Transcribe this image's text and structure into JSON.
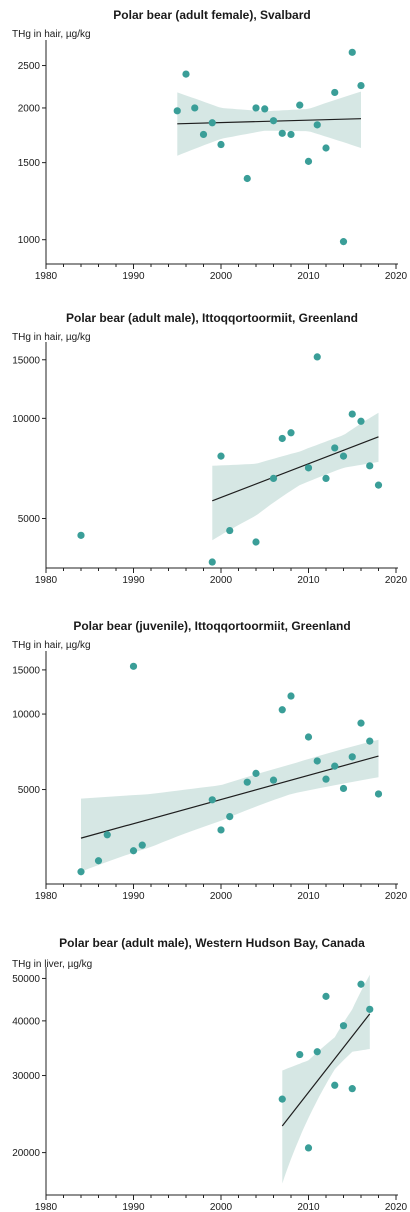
{
  "chart_data": [
    {
      "type": "scatter",
      "title": "Polar bear (adult female), Svalbard",
      "ylabel": "THg in hair, µg/kg",
      "xlabel": "",
      "y_scale": "log",
      "xlim": [
        1980,
        2020
      ],
      "ylim": [
        880,
        2800
      ],
      "x_ticks": [
        1980,
        1990,
        2000,
        2010,
        2020
      ],
      "y_ticks": [
        1000,
        1500,
        2000,
        2500
      ],
      "points": [
        [
          1995,
          1970
        ],
        [
          1996,
          2390
        ],
        [
          1997,
          2000
        ],
        [
          1998,
          1740
        ],
        [
          1999,
          1850
        ],
        [
          2000,
          1650
        ],
        [
          2003,
          1380
        ],
        [
          2004,
          2000
        ],
        [
          2005,
          1990
        ],
        [
          2006,
          1870
        ],
        [
          2007,
          1750
        ],
        [
          2008,
          1740
        ],
        [
          2009,
          2030
        ],
        [
          2010,
          1510
        ],
        [
          2011,
          1830
        ],
        [
          2012,
          1620
        ],
        [
          2013,
          2170
        ],
        [
          2014,
          990
        ],
        [
          2015,
          2680
        ],
        [
          2016,
          2250
        ]
      ],
      "trend": {
        "x": [
          1995,
          2016
        ],
        "y": [
          1840,
          1890
        ]
      },
      "band": {
        "x": [
          1995,
          2000,
          2005,
          2010,
          2016
        ],
        "upper": [
          2170,
          2000,
          1965,
          1990,
          2180
        ],
        "lower": [
          1555,
          1700,
          1775,
          1770,
          1620
        ]
      }
    },
    {
      "type": "scatter",
      "title": "Polar bear (adult male), Ittoqqortoormiit, Greenland",
      "ylabel": "THg in hair, µg/kg",
      "xlabel": "",
      "y_scale": "log",
      "xlim": [
        1980,
        2020
      ],
      "ylim": [
        3550,
        16500
      ],
      "x_ticks": [
        1980,
        1990,
        2000,
        2010,
        2020
      ],
      "y_ticks": [
        5000,
        10000,
        15000
      ],
      "points": [
        [
          1984,
          4450
        ],
        [
          1999,
          3700
        ],
        [
          2000,
          7700
        ],
        [
          2001,
          4600
        ],
        [
          2004,
          4250
        ],
        [
          2006,
          6600
        ],
        [
          2007,
          8700
        ],
        [
          2008,
          9050
        ],
        [
          2010,
          7100
        ],
        [
          2011,
          15300
        ],
        [
          2012,
          6600
        ],
        [
          2013,
          8150
        ],
        [
          2014,
          7700
        ],
        [
          2015,
          10300
        ],
        [
          2016,
          9800
        ],
        [
          2017,
          7200
        ],
        [
          2018,
          6300
        ]
      ],
      "trend": {
        "x": [
          1999,
          2018
        ],
        "y": [
          5650,
          8800
        ]
      },
      "band": {
        "x": [
          1999,
          2004,
          2009,
          2014,
          2018
        ],
        "upper": [
          7200,
          7300,
          7950,
          8900,
          10400
        ],
        "lower": [
          4300,
          5100,
          6300,
          7100,
          7400
        ]
      }
    },
    {
      "type": "scatter",
      "title": "Polar bear (juvenile), Ittoqqortoormiit, Greenland",
      "ylabel": "THg in hair, µg/kg",
      "xlabel": "",
      "y_scale": "log",
      "xlim": [
        1980,
        2020
      ],
      "ylim": [
        2100,
        17200
      ],
      "x_ticks": [
        1980,
        1990,
        2000,
        2010,
        2020
      ],
      "y_ticks": [
        5000,
        10000,
        15000
      ],
      "points": [
        [
          1984,
          2350
        ],
        [
          1986,
          2600
        ],
        [
          1987,
          3300
        ],
        [
          1990,
          2850
        ],
        [
          1990,
          15500
        ],
        [
          1991,
          3000
        ],
        [
          1999,
          4550
        ],
        [
          2000,
          3450
        ],
        [
          2001,
          3900
        ],
        [
          2003,
          5350
        ],
        [
          2004,
          5800
        ],
        [
          2006,
          5450
        ],
        [
          2007,
          10400
        ],
        [
          2008,
          11800
        ],
        [
          2010,
          8100
        ],
        [
          2011,
          6500
        ],
        [
          2012,
          5500
        ],
        [
          2013,
          6200
        ],
        [
          2014,
          5050
        ],
        [
          2015,
          6750
        ],
        [
          2016,
          9200
        ],
        [
          2017,
          7800
        ],
        [
          2018,
          4800
        ]
      ],
      "trend": {
        "x": [
          1984,
          2018
        ],
        "y": [
          3200,
          6800
        ]
      },
      "band": {
        "x": [
          1984,
          1992,
          2000,
          2008,
          2018
        ],
        "upper": [
          4600,
          4800,
          5200,
          6300,
          7900
        ],
        "lower": [
          2350,
          2950,
          3750,
          4800,
          5600
        ]
      }
    },
    {
      "type": "scatter",
      "title": "Polar bear (adult male), Western Hudson Bay, Canada",
      "ylabel": "THg in liver, µg/kg",
      "xlabel": "",
      "y_scale": "log",
      "xlim": [
        1980,
        2020
      ],
      "ylim": [
        16000,
        52000
      ],
      "x_ticks": [
        1980,
        1990,
        2000,
        2010,
        2020
      ],
      "y_ticks": [
        20000,
        30000,
        40000,
        50000
      ],
      "points": [
        [
          2007,
          26500
        ],
        [
          2009,
          33500
        ],
        [
          2010,
          20500
        ],
        [
          2011,
          34000
        ],
        [
          2012,
          45500
        ],
        [
          2013,
          28500
        ],
        [
          2014,
          39000
        ],
        [
          2015,
          28000
        ],
        [
          2016,
          48500
        ],
        [
          2017,
          42500
        ]
      ],
      "trend": {
        "x": [
          2007,
          2017
        ],
        "y": [
          23000,
          41500
        ]
      },
      "band": {
        "x": [
          2007,
          2010,
          2013,
          2015,
          2017
        ],
        "upper": [
          30800,
          32500,
          36700,
          42500,
          51000
        ],
        "lower": [
          17000,
          24000,
          31000,
          34000,
          34500
        ]
      }
    }
  ]
}
